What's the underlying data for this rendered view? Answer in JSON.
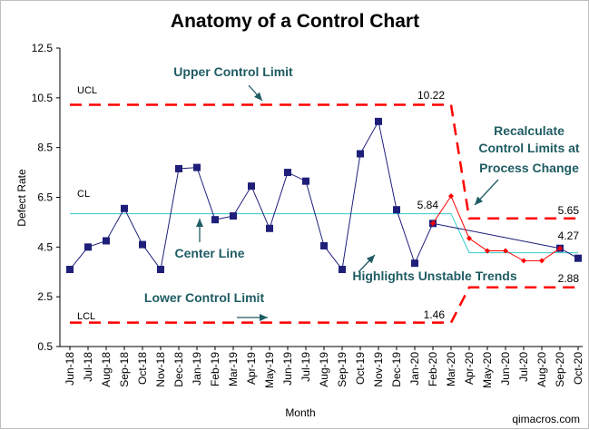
{
  "chart_data": {
    "type": "line",
    "title": "Anatomy of a Control Chart",
    "xlabel": "Month",
    "ylabel": "Defect Rate",
    "ylim": [
      0.5,
      12.5
    ],
    "yticks": [
      "0.5",
      "2.5",
      "4.5",
      "6.5",
      "8.5",
      "10.5",
      "12.5"
    ],
    "categories": [
      "Jun-18",
      "Jul-18",
      "Aug-18",
      "Sep-18",
      "Oct-18",
      "Nov-18",
      "Dec-18",
      "Jan-19",
      "Feb-19",
      "Mar-19",
      "Apr-19",
      "May-19",
      "Jun-19",
      "Jul-19",
      "Aug-19",
      "Sep-19",
      "Oct-19",
      "Nov-19",
      "Dec-19",
      "Jan-20",
      "Feb-20",
      "Mar-20",
      "Apr-20",
      "May-20",
      "Jun-20",
      "Jul-20",
      "Aug-20",
      "Sep-20",
      "Oct-20"
    ],
    "series": [
      {
        "values": [
          3.6,
          4.5,
          4.75,
          6.05,
          4.6,
          3.6,
          7.65,
          7.7,
          5.6,
          5.75,
          6.95,
          5.25,
          7.5,
          7.15,
          4.55,
          3.6,
          8.25,
          9.55,
          6.0,
          3.85,
          5.45,
          null,
          null,
          null,
          null,
          null,
          null,
          4.45,
          4.05
        ],
        "color": "#1f1f7a",
        "marker": "square"
      },
      {
        "values": [
          null,
          null,
          null,
          null,
          null,
          null,
          null,
          null,
          null,
          null,
          null,
          null,
          null,
          null,
          null,
          null,
          null,
          null,
          null,
          null,
          5.45,
          6.55,
          4.85,
          4.35,
          4.35,
          3.95,
          3.95,
          4.45,
          null
        ],
        "color": "#ff0000",
        "marker": "diamond"
      }
    ],
    "limits_phase1": {
      "ucl": 10.22,
      "cl": 5.84,
      "lcl": 1.46,
      "range": [
        0,
        21
      ]
    },
    "limits_phase2": {
      "ucl": 5.65,
      "cl": 4.27,
      "lcl": 2.88,
      "range": [
        22,
        28
      ]
    },
    "limit_colors": {
      "control_limit": "#ff0000",
      "center_line": "#33cccc"
    },
    "line_labels": {
      "ucl": "UCL",
      "cl": "CL",
      "lcl": "LCL"
    },
    "value_labels": {
      "ucl1": "10.22",
      "cl1": "5.84",
      "lcl1": "1.46",
      "ucl2": "5.65",
      "cl2": "4.27",
      "lcl2": "2.88"
    },
    "annotations": {
      "upper": "Upper Control Limit",
      "lower": "Lower Control  Limit",
      "center": "Center Line",
      "unstable": "Highlights Unstable Trends",
      "recalc": [
        "Recalculate",
        "Control Limits at",
        "Process Change"
      ]
    },
    "annotation_color": "#1f5c63",
    "credit": "qimacros.com",
    "grid": false,
    "legend": "none"
  }
}
